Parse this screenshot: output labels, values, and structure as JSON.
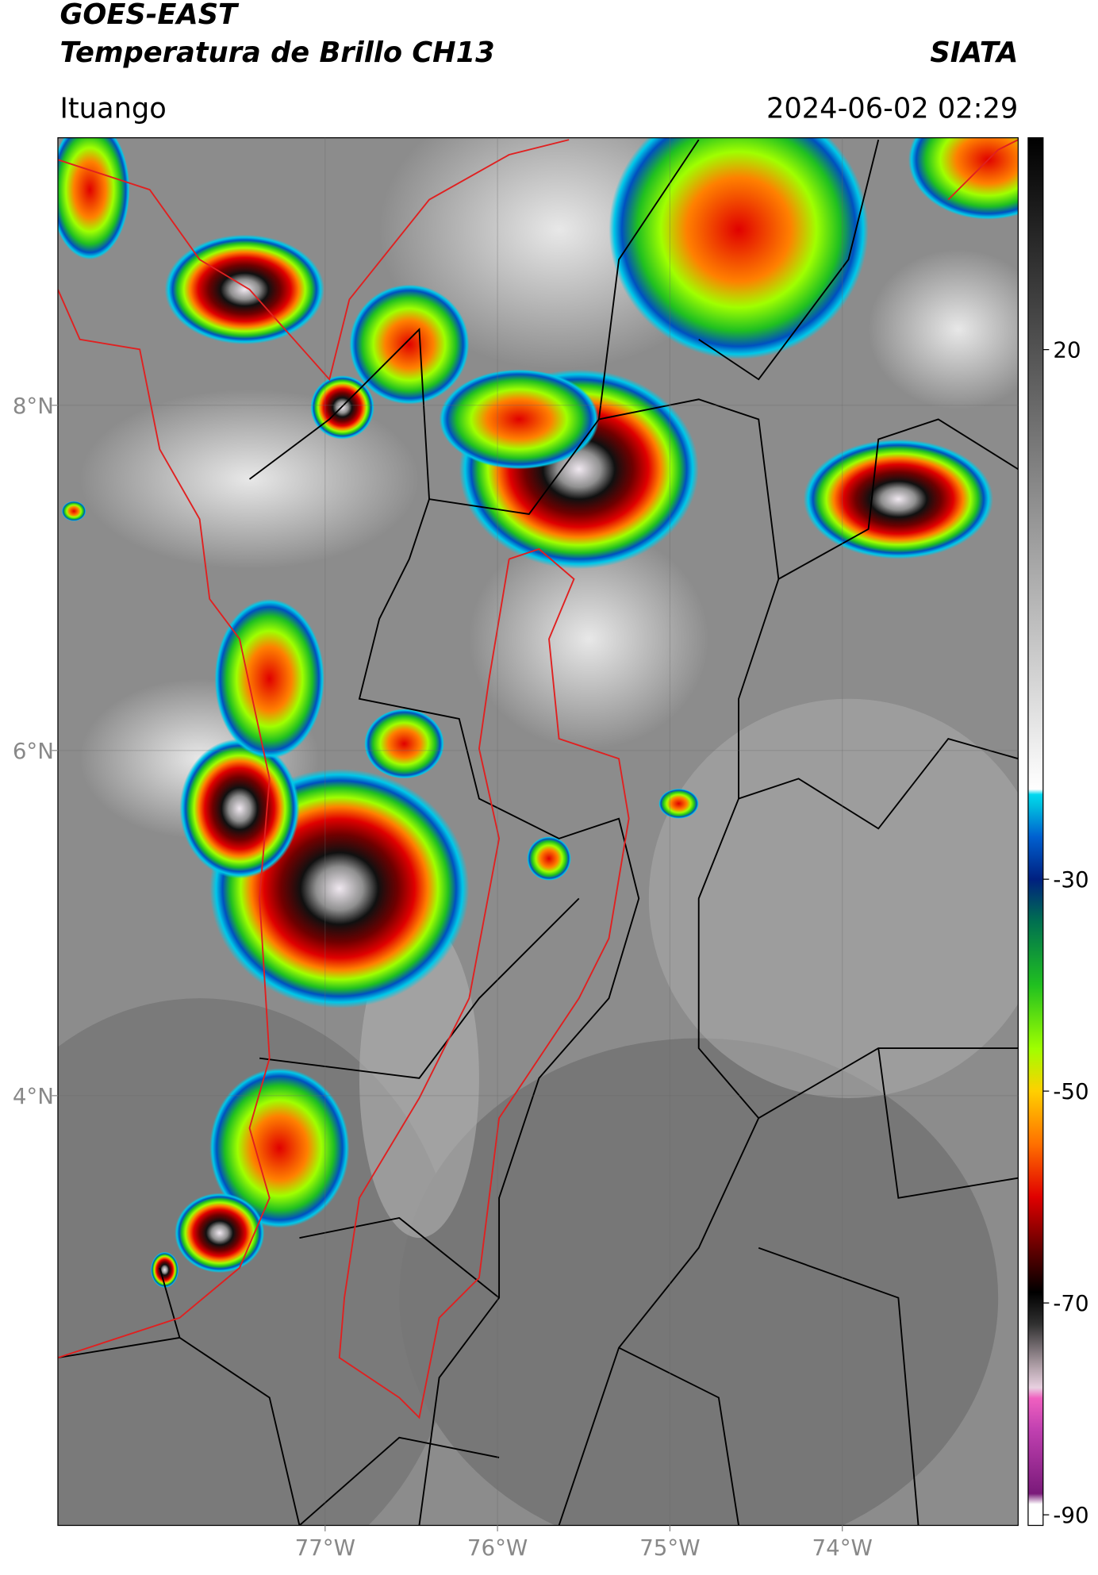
{
  "header": {
    "title": "GOES-EAST",
    "subtitle": "Temperatura de Brillo CH13",
    "agency": "SIATA",
    "location": "Ituango",
    "datetime": "2024-06-02 02:29"
  },
  "map": {
    "xlim": [
      -78.55,
      -72.98
    ],
    "ylim": [
      1.51,
      9.55
    ],
    "grid": true,
    "xticks": [
      {
        "value": -77,
        "label": "77°W"
      },
      {
        "value": -76,
        "label": "76°W"
      },
      {
        "value": -75,
        "label": "75°W"
      },
      {
        "value": -74,
        "label": "74°W"
      }
    ],
    "yticks": [
      {
        "value": 8,
        "label": "8°N"
      },
      {
        "value": 6,
        "label": "6°N"
      },
      {
        "value": 4,
        "label": "4°N"
      }
    ]
  },
  "colorbar": {
    "clim": [
      -91,
      40
    ],
    "ticks": [
      20,
      -30,
      -50,
      -70,
      -90
    ],
    "colormap": [
      {
        "value": -91,
        "color": "#ffffff"
      },
      {
        "value": -89,
        "color": "#ffffff"
      },
      {
        "value": -88,
        "color": "#7a1a7a"
      },
      {
        "value": -82,
        "color": "#c040b0"
      },
      {
        "value": -79,
        "color": "#f060c0"
      },
      {
        "value": -78,
        "color": "#e8d0e0"
      },
      {
        "value": -76,
        "color": "#b0a0a8"
      },
      {
        "value": -72,
        "color": "#303030"
      },
      {
        "value": -69,
        "color": "#000000"
      },
      {
        "value": -65,
        "color": "#600000"
      },
      {
        "value": -60,
        "color": "#e00000"
      },
      {
        "value": -55,
        "color": "#ff7000"
      },
      {
        "value": -50,
        "color": "#ffd000"
      },
      {
        "value": -46,
        "color": "#a0ff00"
      },
      {
        "value": -40,
        "color": "#20c020"
      },
      {
        "value": -34,
        "color": "#007050"
      },
      {
        "value": -30,
        "color": "#002080"
      },
      {
        "value": -26,
        "color": "#0060d0"
      },
      {
        "value": -23,
        "color": "#00c0e0"
      },
      {
        "value": -22,
        "color": "#00d8f0"
      },
      {
        "value": -21.5,
        "color": "#ffffff"
      },
      {
        "value": 40,
        "color": "#000000"
      }
    ]
  }
}
